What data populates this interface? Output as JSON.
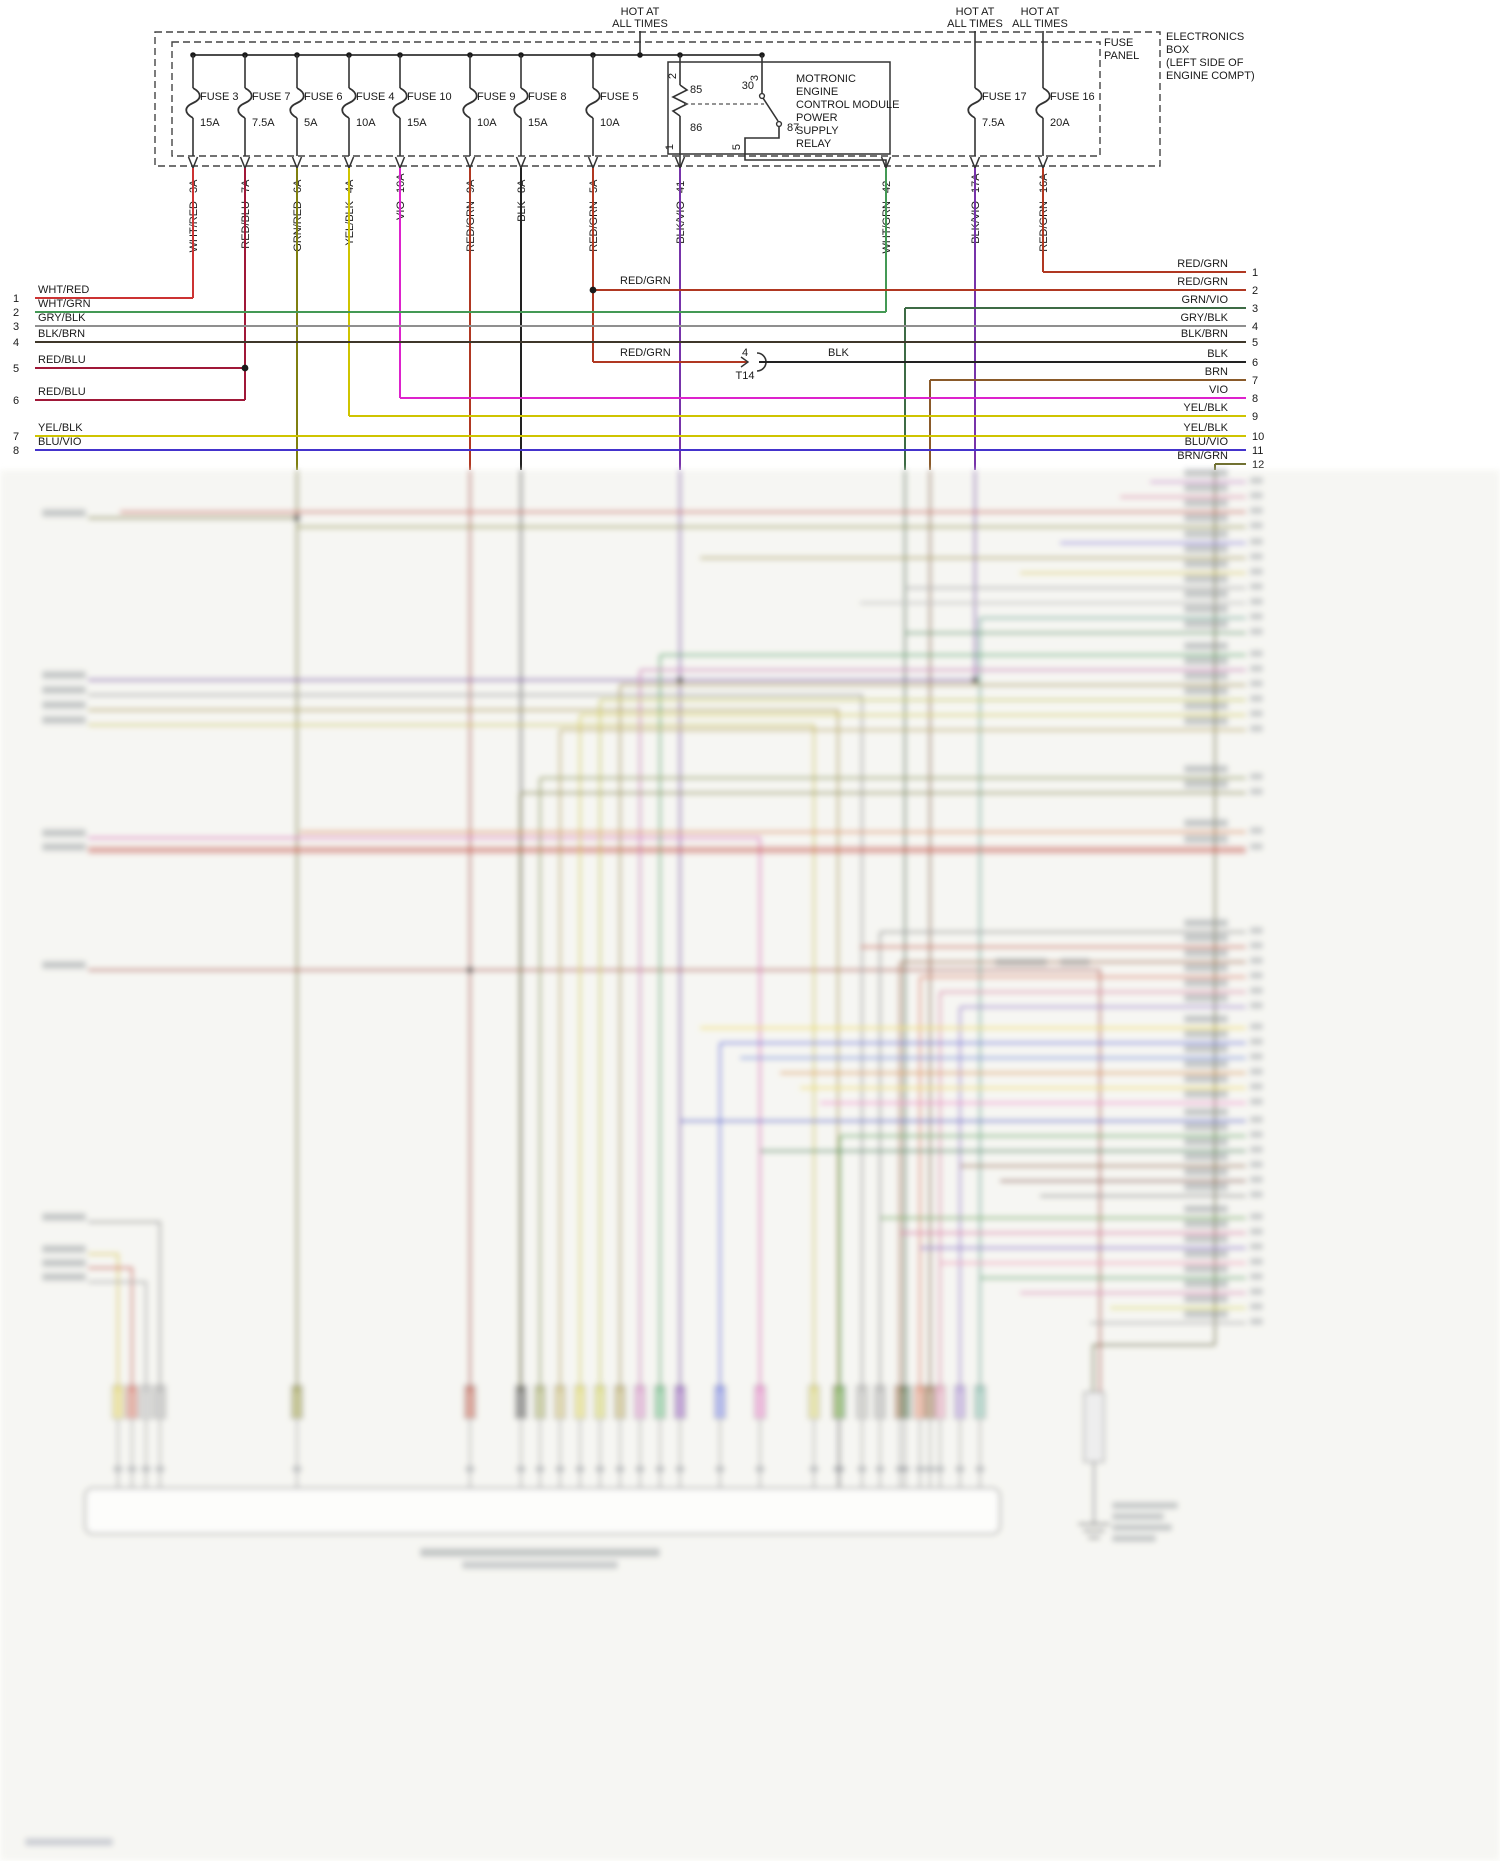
{
  "hot_label": {
    "line1": "HOT AT",
    "line2": "ALL TIMES"
  },
  "fuse_panel": {
    "line1": "FUSE",
    "line2": "PANEL"
  },
  "electronics_box": {
    "line1": "ELECTRONICS",
    "line2": "BOX",
    "line3": "(LEFT SIDE OF",
    "line4": "ENGINE COMPT)"
  },
  "relay": {
    "label_lines": [
      "MOTRONIC",
      "ENGINE",
      "CONTROL MODULE",
      "POWER",
      "SUPPLY",
      "RELAY"
    ],
    "pin_85": "85",
    "pin_30": "30",
    "pin_86": "86",
    "pin_87": "87",
    "term_2": "2",
    "term_3": "3",
    "term_1": "1",
    "term_5": "5"
  },
  "fuses": [
    {
      "name": "FUSE 3",
      "amps": "15A"
    },
    {
      "name": "FUSE 7",
      "amps": "7.5A"
    },
    {
      "name": "FUSE 6",
      "amps": "5A"
    },
    {
      "name": "FUSE 4",
      "amps": "10A"
    },
    {
      "name": "FUSE 10",
      "amps": "15A"
    },
    {
      "name": "FUSE 9",
      "amps": "10A"
    },
    {
      "name": "FUSE 8",
      "amps": "15A"
    },
    {
      "name": "FUSE 5",
      "amps": "10A"
    },
    {
      "name": "FUSE 17",
      "amps": "7.5A"
    },
    {
      "name": "FUSE 16",
      "amps": "20A"
    }
  ],
  "drops": [
    {
      "wire": "WHT/RED",
      "terminal": "3A"
    },
    {
      "wire": "RED/BLU",
      "terminal": "7A"
    },
    {
      "wire": "GRN/RED",
      "terminal": "6A"
    },
    {
      "wire": "YEL/BLK",
      "terminal": "4A"
    },
    {
      "wire": "VIO",
      "terminal": "10A"
    },
    {
      "wire": "RED/GRN",
      "terminal": "9A"
    },
    {
      "wire": "BLK",
      "terminal": "8A"
    },
    {
      "wire": "RED/GRN",
      "terminal": "5A"
    },
    {
      "wire": "BLK/VIO",
      "terminal": "41"
    },
    {
      "wire": "WHT/GRN",
      "terminal": "42"
    },
    {
      "wire": "BLK/VIO",
      "terminal": "17A"
    },
    {
      "wire": "RED/GRN",
      "terminal": "16A"
    }
  ],
  "left_rows": [
    {
      "num": "1",
      "label": "WHT/RED"
    },
    {
      "num": "2",
      "label": "WHT/GRN"
    },
    {
      "num": "3",
      "label": "GRY/BLK"
    },
    {
      "num": "4",
      "label": "BLK/BRN"
    },
    {
      "num": "5",
      "label": "RED/BLU"
    },
    {
      "num": "6",
      "label": "RED/BLU"
    },
    {
      "num": "7",
      "label": "YEL/BLK"
    },
    {
      "num": "8",
      "label": "BLU/VIO"
    }
  ],
  "right_rows": [
    {
      "num": "1",
      "label": "RED/GRN"
    },
    {
      "num": "2",
      "label": "RED/GRN"
    },
    {
      "num": "3",
      "label": "GRN/VIO"
    },
    {
      "num": "4",
      "label": "GRY/BLK"
    },
    {
      "num": "5",
      "label": "BLK/BRN"
    },
    {
      "num": "6",
      "label": "BLK"
    },
    {
      "num": "7",
      "label": "BRN"
    },
    {
      "num": "8",
      "label": "VIO"
    },
    {
      "num": "9",
      "label": "YEL/BLK"
    },
    {
      "num": "10",
      "label": "YEL/BLK"
    },
    {
      "num": "11",
      "label": "BLU/VIO"
    },
    {
      "num": "12",
      "label": "BRN/GRN"
    }
  ],
  "mid_labels": {
    "splice_upper": "RED/GRN",
    "splice_lower": "RED/GRN",
    "t14_pin": "4",
    "t14": "T14",
    "after_t14": "BLK"
  },
  "colors": {
    "WHT/RED": "#cc3333",
    "RED/BLU": "#a01838",
    "GRN/RED": "#7f7f10",
    "YEL/BLK": "#cfc400",
    "VIO": "#dd22cc",
    "RED/GRN": "#b03822",
    "BLK": "#222222",
    "BLK/VIO": "#7733aa",
    "WHT/GRN": "#449955",
    "GRN/VIO": "#3d6b45",
    "BRN": "#8a5a2a",
    "BLU/VIO": "#4433cc",
    "GRY/BLK": "#8f8f8f",
    "BLK/BRN": "#3f372a",
    "BRN/GRN": "#6f6f2f"
  }
}
